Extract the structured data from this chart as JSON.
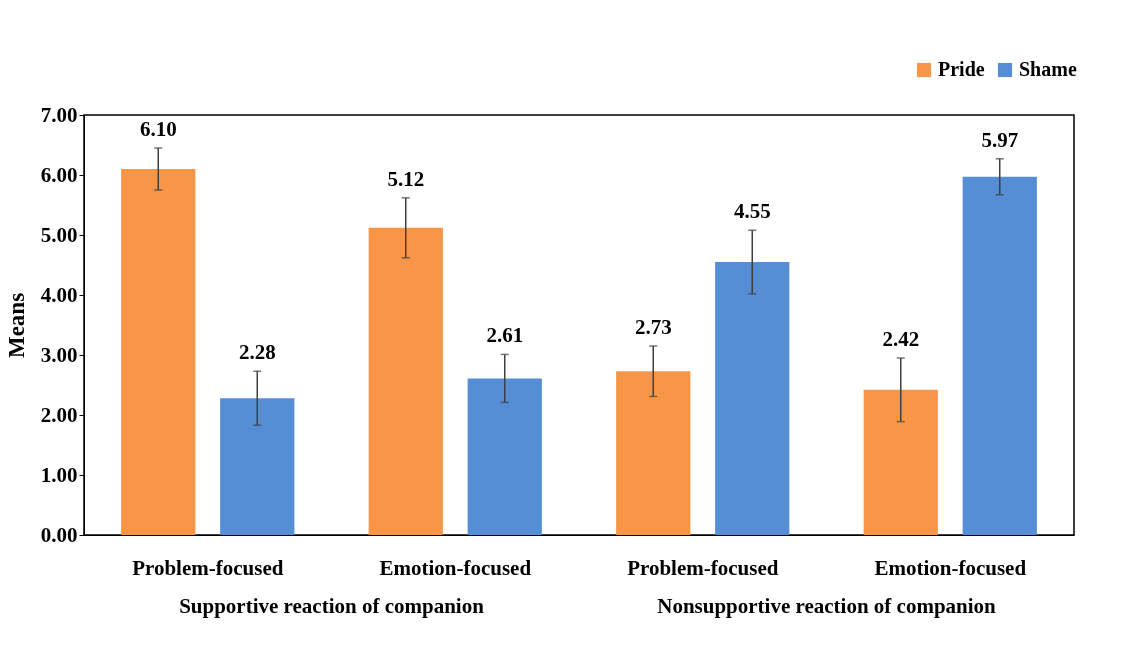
{
  "chart_data": {
    "type": "bar",
    "ylabel": "Means",
    "categories": [
      "Problem-focused",
      "Emotion-focused",
      "Problem-focused",
      "Emotion-focused"
    ],
    "series": [
      {
        "name": "Pride",
        "color": "#f79646",
        "values": [
          6.1,
          5.12,
          2.73,
          2.42
        ],
        "value_labels": [
          "6.10",
          "5.12",
          "2.73",
          "2.42"
        ],
        "errors": [
          0.35,
          0.5,
          0.42,
          0.53
        ]
      },
      {
        "name": "Shame",
        "color": "#558ed5",
        "values": [
          2.28,
          2.61,
          4.55,
          5.97
        ],
        "value_labels": [
          "2.28",
          "2.61",
          "4.55",
          "5.97"
        ],
        "errors": [
          0.45,
          0.4,
          0.53,
          0.3
        ]
      }
    ],
    "ylim": [
      0,
      7
    ],
    "yticks": [
      {
        "value": 0,
        "label": "0.00"
      },
      {
        "value": 1,
        "label": "1.00"
      },
      {
        "value": 2,
        "label": "2.00"
      },
      {
        "value": 3,
        "label": "3.00"
      },
      {
        "value": 4,
        "label": "4.00"
      },
      {
        "value": 5,
        "label": "5.00"
      },
      {
        "value": 6,
        "label": "6.00"
      },
      {
        "value": 7,
        "label": "7.00"
      }
    ],
    "grid": false,
    "legend": "top right",
    "annotations": [
      "Supportive reaction of companion",
      "Nonsupportive reaction of companion"
    ]
  }
}
